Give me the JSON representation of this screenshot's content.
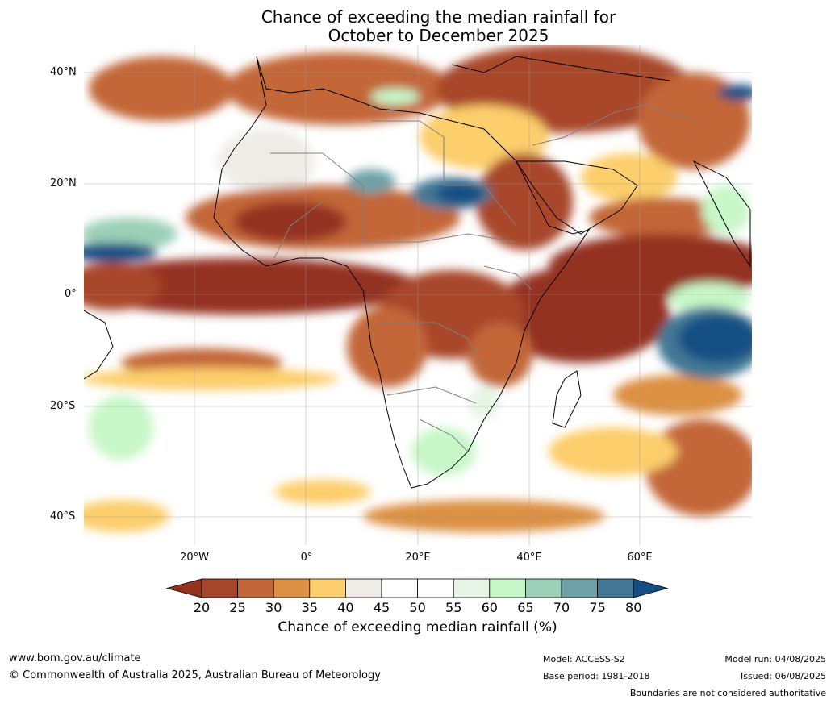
{
  "title": {
    "line1": "Chance of exceeding the median rainfall for",
    "line2": "October to December 2025"
  },
  "map": {
    "lat_labels": [
      "40°N",
      "20°N",
      "0°",
      "20°S",
      "40°S"
    ],
    "lon_labels": [
      "20°W",
      "0°",
      "20°E",
      "40°E",
      "60°E"
    ]
  },
  "colorbar": {
    "ticks": [
      "20",
      "25",
      "30",
      "35",
      "40",
      "45",
      "50",
      "55",
      "60",
      "65",
      "70",
      "75",
      "80"
    ],
    "colors": [
      "#943220",
      "#a8462b",
      "#c36639",
      "#dc9043",
      "#fcce6c",
      "#efece8",
      "#ffffff",
      "#ffffff",
      "#e6f5e6",
      "#c8f7c8",
      "#9ccfb7",
      "#6ea2a7",
      "#427895",
      "#164f84"
    ],
    "label": "Chance of exceeding median rainfall (%)"
  },
  "footer": {
    "website": "www.bom.gov.au/climate",
    "copyright": "© Commonwealth of Australia 2025, Australian Bureau of Meteorology",
    "model": "Model: ACCESS-S2",
    "base_period": "Base period: 1981-2018",
    "model_run": "Model run: 04/08/2025",
    "issued": "Issued: 06/08/2025",
    "disclaimer": "Boundaries are not considered authoritative"
  }
}
